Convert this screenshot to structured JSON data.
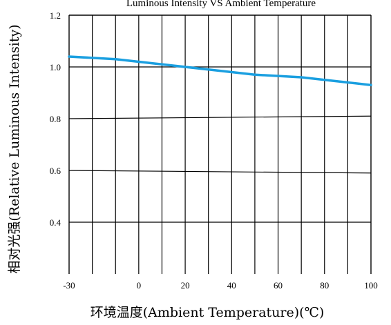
{
  "chart_data": {
    "type": "line",
    "title": "Luminous Intensity  VS  Ambient  Temperature",
    "xlabel": "环境温度(Ambient  Temperature)(℃)",
    "ylabel": "相对光强(Relative  Luminous  Intensity)",
    "x_ticks": [
      "-30",
      "0",
      "20",
      "40",
      "60",
      "80",
      "100"
    ],
    "x_tick_values": [
      -30,
      0,
      20,
      40,
      60,
      80,
      100
    ],
    "y_ticks": [
      "1.2",
      "1.0",
      "0.8",
      "0.6",
      "0.4"
    ],
    "y_tick_values": [
      1.2,
      1.0,
      0.8,
      0.6,
      0.4
    ],
    "xlim": [
      -30,
      100
    ],
    "ylim": [
      0.2,
      1.2
    ],
    "grid": true,
    "series": [
      {
        "color": "#1a9fe0",
        "x": [
          -30,
          -10,
          10,
          30,
          50,
          70,
          90,
          100
        ],
        "y": [
          1.04,
          1.03,
          1.01,
          0.99,
          0.97,
          0.96,
          0.94,
          0.93
        ]
      }
    ],
    "reference_lines": [
      {
        "x": [
          -30,
          100
        ],
        "y": [
          0.8,
          0.81
        ]
      },
      {
        "x": [
          -30,
          100
        ],
        "y": [
          0.6,
          0.59
        ]
      }
    ]
  }
}
